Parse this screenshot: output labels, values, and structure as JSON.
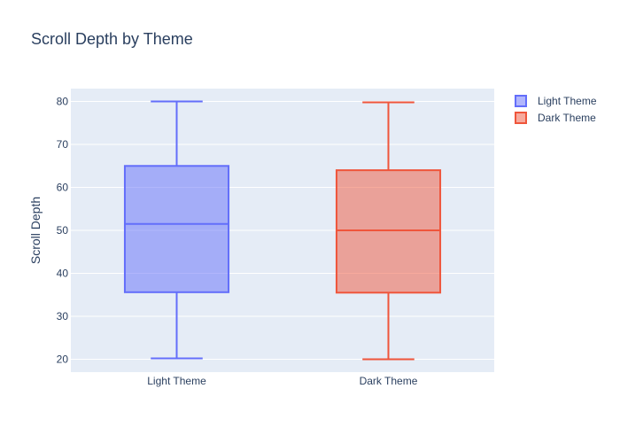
{
  "chart_data": {
    "type": "box",
    "title": "Scroll Depth by Theme",
    "xlabel": "",
    "ylabel": "Scroll Depth",
    "ylim": [
      17,
      83
    ],
    "y_ticks": [
      20,
      30,
      40,
      50,
      60,
      70,
      80
    ],
    "grid": true,
    "legend_position": "top-right",
    "categories": [
      "Light Theme",
      "Dark Theme"
    ],
    "series": [
      {
        "name": "Light Theme",
        "min": 20.2,
        "q1": 35.6,
        "median": 51.5,
        "q3": 65.0,
        "max": 80.0,
        "color": "#636efa"
      },
      {
        "name": "Dark Theme",
        "min": 20.0,
        "q1": 35.5,
        "median": 50.0,
        "q3": 64.0,
        "max": 79.8,
        "color": "#ef553b"
      }
    ]
  },
  "colors": {
    "plot_background": "#e5ecf6",
    "gridline": "#ffffff",
    "text": "#2a3f5f"
  }
}
